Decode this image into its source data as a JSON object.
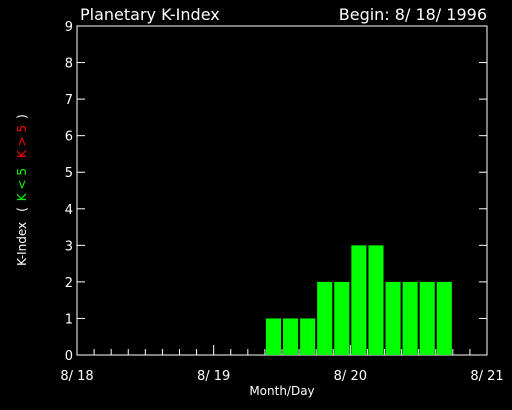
{
  "chart_data": {
    "type": "bar",
    "title": "Planetary K-Index",
    "begin_label": "Begin: 8/ 18/ 1996",
    "xlabel": "Month/Day",
    "ylabel": {
      "main": "K-Index",
      "open_paren": "(",
      "green_part": "K < 5",
      "red_part": "K > 5",
      "close_paren": ")"
    },
    "ylim": [
      0,
      9
    ],
    "y_ticks": [
      "0",
      "1",
      "2",
      "3",
      "4",
      "5",
      "6",
      "7",
      "8",
      "9"
    ],
    "x_unit": "3-hour interval",
    "xlim": [
      0,
      24
    ],
    "x_tick_labels": [
      {
        "x": 0,
        "label": "8/ 18"
      },
      {
        "x": 8,
        "label": "8/ 19"
      },
      {
        "x": 16,
        "label": "8/ 20"
      },
      {
        "x": 24,
        "label": "8/ 21"
      }
    ],
    "values": [
      0,
      0,
      0,
      0,
      0,
      0,
      0,
      0,
      0,
      0,
      0,
      1,
      1,
      1,
      2,
      2,
      3,
      3,
      2,
      2,
      2,
      2,
      0,
      0
    ],
    "grid": false,
    "colors": {
      "background": "#000000",
      "axes": "#ffffff",
      "bar_low": "#00ff00",
      "bar_high": "#ff0000",
      "label_green": "#00ff00",
      "label_red": "#ff0000"
    },
    "threshold": 5
  }
}
